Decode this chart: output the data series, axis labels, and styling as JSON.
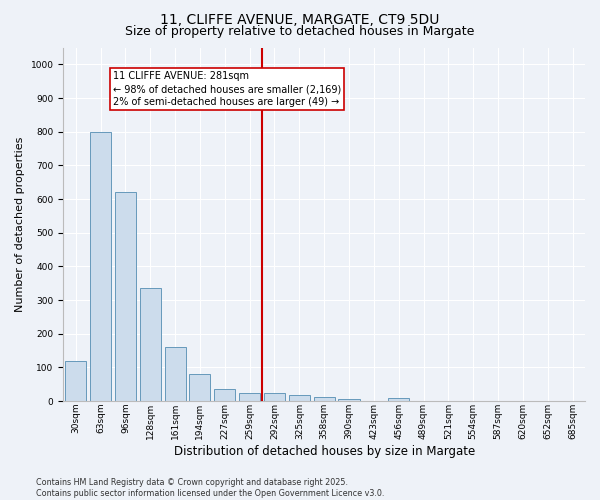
{
  "title": "11, CLIFFE AVENUE, MARGATE, CT9 5DU",
  "subtitle": "Size of property relative to detached houses in Margate",
  "xlabel": "Distribution of detached houses by size in Margate",
  "ylabel": "Number of detached properties",
  "footer_line1": "Contains HM Land Registry data © Crown copyright and database right 2025.",
  "footer_line2": "Contains public sector information licensed under the Open Government Licence v3.0.",
  "bar_labels": [
    "30sqm",
    "63sqm",
    "96sqm",
    "128sqm",
    "161sqm",
    "194sqm",
    "227sqm",
    "259sqm",
    "292sqm",
    "325sqm",
    "358sqm",
    "390sqm",
    "423sqm",
    "456sqm",
    "489sqm",
    "521sqm",
    "554sqm",
    "587sqm",
    "620sqm",
    "652sqm",
    "685sqm"
  ],
  "bar_values": [
    120,
    800,
    620,
    335,
    162,
    80,
    35,
    25,
    25,
    18,
    12,
    5,
    0,
    8,
    0,
    0,
    0,
    0,
    0,
    0,
    0
  ],
  "bar_color": "#ccdcec",
  "bar_edge_color": "#6699bb",
  "ylim": [
    0,
    1050
  ],
  "yticks": [
    0,
    100,
    200,
    300,
    400,
    500,
    600,
    700,
    800,
    900,
    1000
  ],
  "vline_color": "#cc0000",
  "annotation_text": "11 CLIFFE AVENUE: 281sqm\n← 98% of detached houses are smaller (2,169)\n2% of semi-detached houses are larger (49) →",
  "background_color": "#eef2f8",
  "grid_color": "#ffffff",
  "title_fontsize": 10,
  "subtitle_fontsize": 9,
  "tick_fontsize": 6.5,
  "ylabel_fontsize": 8,
  "xlabel_fontsize": 8.5,
  "footer_fontsize": 5.8,
  "annot_fontsize": 7
}
